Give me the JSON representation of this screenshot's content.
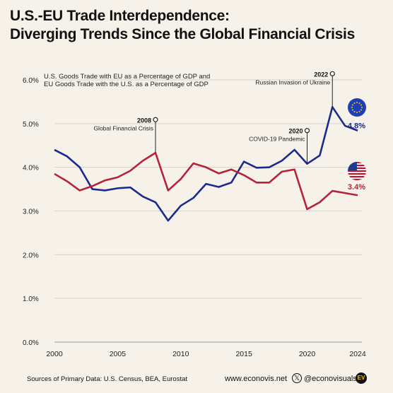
{
  "title": {
    "line1": "U.S.-EU Trade Interdependence:",
    "line2": "Diverging Trends Since the Global Financial Crisis"
  },
  "chart_data": {
    "type": "line",
    "subtitle_line1": "U.S. Goods Trade with EU as a Percentage of GDP and",
    "subtitle_line2": "EU Goods Trade with the U.S. as a Percentage of GDP",
    "x": [
      2000,
      2001,
      2002,
      2003,
      2004,
      2005,
      2006,
      2007,
      2008,
      2009,
      2010,
      2011,
      2012,
      2013,
      2014,
      2015,
      2016,
      2017,
      2018,
      2019,
      2020,
      2021,
      2022,
      2023,
      2024
    ],
    "series": [
      {
        "key": "eu",
        "color": "#1b2a8c",
        "end_label": "4.8%",
        "values": [
          4.4,
          4.25,
          4.0,
          3.5,
          3.47,
          3.52,
          3.54,
          3.33,
          3.2,
          2.78,
          3.12,
          3.3,
          3.62,
          3.55,
          3.65,
          4.13,
          3.99,
          4.0,
          4.15,
          4.4,
          4.08,
          4.27,
          5.38,
          4.95,
          4.84
        ]
      },
      {
        "key": "us",
        "color": "#b4233a",
        "end_label": "3.4%",
        "values": [
          3.85,
          3.68,
          3.47,
          3.57,
          3.7,
          3.77,
          3.92,
          4.15,
          4.33,
          3.47,
          3.73,
          4.09,
          4.0,
          3.86,
          3.95,
          3.82,
          3.65,
          3.65,
          3.9,
          3.95,
          3.04,
          3.2,
          3.46,
          3.41,
          3.36
        ]
      }
    ],
    "ylim": [
      0,
      6
    ],
    "yticks": [
      "0.0%",
      "1.0%",
      "2.0%",
      "3.0%",
      "4.0%",
      "5.0%",
      "6.0%"
    ],
    "xticks": [
      "2000",
      "2005",
      "2010",
      "2015",
      "2020",
      "2024"
    ],
    "xtick_values": [
      2000,
      2005,
      2010,
      2015,
      2020,
      2024
    ],
    "grid": true,
    "annotations": [
      {
        "year": "2008",
        "text": "Global Financial Crisis",
        "x": 2008,
        "y": 4.33
      },
      {
        "year": "2020",
        "text": "COVID-19 Pandemic",
        "x": 2020,
        "y": 4.08
      },
      {
        "year": "2022",
        "text": "Russian Invasion of Ukraine",
        "x": 2022,
        "y": 5.38
      }
    ]
  },
  "footer": {
    "source": "Sources of Primary Data: U.S. Census, BEA, Eurostat",
    "website": "www.econovis.net",
    "x_symbol": "𝕏",
    "handle": "@econovisuals",
    "logo_text": "EV"
  },
  "colors": {
    "eu": "#1b2a8c",
    "us": "#b4233a",
    "background": "#f6f2ea",
    "flag_eu": "#1f3fb5",
    "star": "#f2c21b"
  },
  "icons": {
    "eu": "eu-flag-icon",
    "us": "us-flag-icon"
  }
}
